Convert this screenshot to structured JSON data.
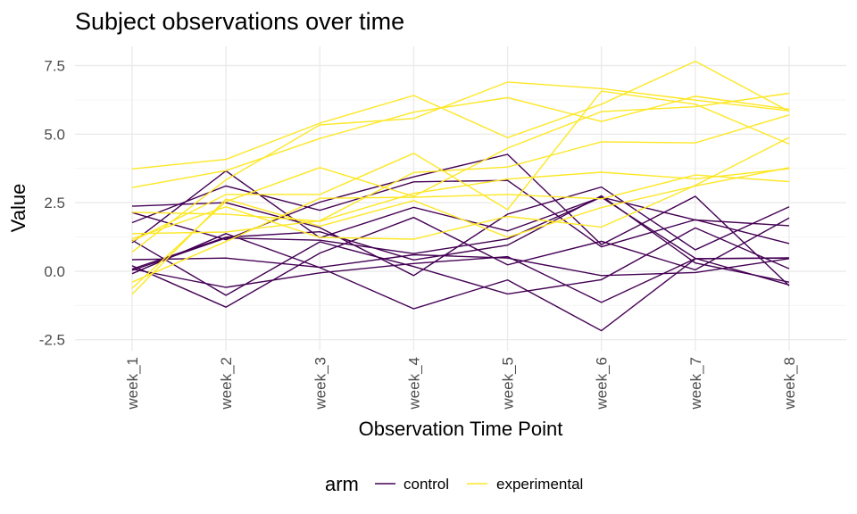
{
  "chart_data": {
    "type": "line",
    "title": "Subject observations over time",
    "xlabel": "Observation Time Point",
    "ylabel": "Value",
    "categories": [
      "week_1",
      "week_2",
      "week_3",
      "week_4",
      "week_5",
      "week_6",
      "week_7",
      "week_8"
    ],
    "ylim": [
      -2.9,
      8.2
    ],
    "yticks": [
      -2.5,
      0.0,
      2.5,
      5.0,
      7.5
    ],
    "ytick_labels": [
      "-2.5",
      "0.0",
      "2.5",
      "5.0",
      "7.5"
    ],
    "grid": true,
    "legend": {
      "title": "arm",
      "position": "bottom",
      "entries": [
        {
          "label": "control",
          "color": "#440154"
        },
        {
          "label": "experimental",
          "color": "#FDE725"
        }
      ]
    },
    "series": [
      {
        "group": "control",
        "color": "#440154",
        "values": [
          0.2,
          -1.31,
          0.66,
          1.96,
          0.23,
          1.09,
          0.05,
          1.94
        ]
      },
      {
        "group": "control",
        "color": "#440154",
        "values": [
          1.13,
          -0.88,
          1.07,
          0.17,
          -0.83,
          -0.31,
          1.58,
          0.09
        ]
      },
      {
        "group": "control",
        "color": "#440154",
        "values": [
          1.77,
          3.11,
          2.22,
          3.26,
          3.31,
          0.89,
          1.88,
          1.01
        ]
      },
      {
        "group": "control",
        "color": "#440154",
        "values": [
          1.04,
          3.66,
          1.22,
          2.33,
          1.47,
          2.7,
          1.87,
          1.66
        ]
      },
      {
        "group": "control",
        "color": "#440154",
        "values": [
          0.42,
          0.48,
          0.14,
          0.6,
          0.48,
          -0.16,
          -0.05,
          0.46
        ]
      },
      {
        "group": "control",
        "color": "#440154",
        "values": [
          2.37,
          2.5,
          1.59,
          -0.16,
          2.08,
          3.07,
          0.78,
          2.35
        ]
      },
      {
        "group": "control",
        "color": "#440154",
        "values": [
          0.03,
          1.21,
          1.13,
          0.64,
          1.18,
          2.7,
          0.47,
          -0.5
        ]
      },
      {
        "group": "control",
        "color": "#440154",
        "values": [
          -0.09,
          1.37,
          0.13,
          -1.37,
          -0.32,
          -2.17,
          0.45,
          0.48
        ]
      },
      {
        "group": "control",
        "color": "#440154",
        "values": [
          0.08,
          1.24,
          1.44,
          0.41,
          0.95,
          2.75,
          0.3,
          -0.4
        ]
      },
      {
        "group": "control",
        "color": "#440154",
        "values": [
          2.14,
          1.15,
          2.52,
          3.44,
          4.26,
          0.97,
          2.73,
          -0.53
        ]
      },
      {
        "group": "control",
        "color": "#440154",
        "values": [
          0.08,
          -0.59,
          -0.06,
          0.28,
          0.53,
          -1.14,
          0.46,
          0.49
        ]
      },
      {
        "group": "experimental",
        "color": "#FDE725",
        "values": [
          3.05,
          3.67,
          4.84,
          5.8,
          6.33,
          5.46,
          6.38,
          5.91
        ]
      },
      {
        "group": "experimental",
        "color": "#FDE725",
        "values": [
          -0.84,
          2.63,
          1.64,
          2.58,
          1.24,
          2.32,
          3.11,
          3.78
        ]
      },
      {
        "group": "experimental",
        "color": "#FDE725",
        "values": [
          2.15,
          2.08,
          1.82,
          2.84,
          3.36,
          3.61,
          3.37,
          3.74
        ]
      },
      {
        "group": "experimental",
        "color": "#FDE725",
        "values": [
          -0.62,
          2.54,
          3.78,
          2.73,
          4.49,
          5.82,
          6.0,
          6.49
        ]
      },
      {
        "group": "experimental",
        "color": "#FDE725",
        "values": [
          0.7,
          3.33,
          5.34,
          5.57,
          6.9,
          6.66,
          6.24,
          5.85
        ]
      },
      {
        "group": "experimental",
        "color": "#FDE725",
        "values": [
          3.73,
          4.08,
          5.4,
          6.41,
          4.87,
          6.09,
          7.66,
          5.83
        ]
      },
      {
        "group": "experimental",
        "color": "#FDE725",
        "values": [
          1.18,
          2.35,
          1.23,
          1.17,
          2.0,
          1.61,
          3.13,
          4.88
        ]
      },
      {
        "group": "experimental",
        "color": "#FDE725",
        "values": [
          1.37,
          1.43,
          1.84,
          3.6,
          3.8,
          4.72,
          4.68,
          5.7
        ]
      },
      {
        "group": "experimental",
        "color": "#FDE725",
        "values": [
          -0.4,
          1.08,
          2.66,
          2.7,
          2.8,
          2.64,
          3.51,
          3.27
        ]
      },
      {
        "group": "experimental",
        "color": "#FDE725",
        "values": [
          1.09,
          2.8,
          2.8,
          4.3,
          2.25,
          6.57,
          6.09,
          4.64
        ]
      }
    ]
  }
}
